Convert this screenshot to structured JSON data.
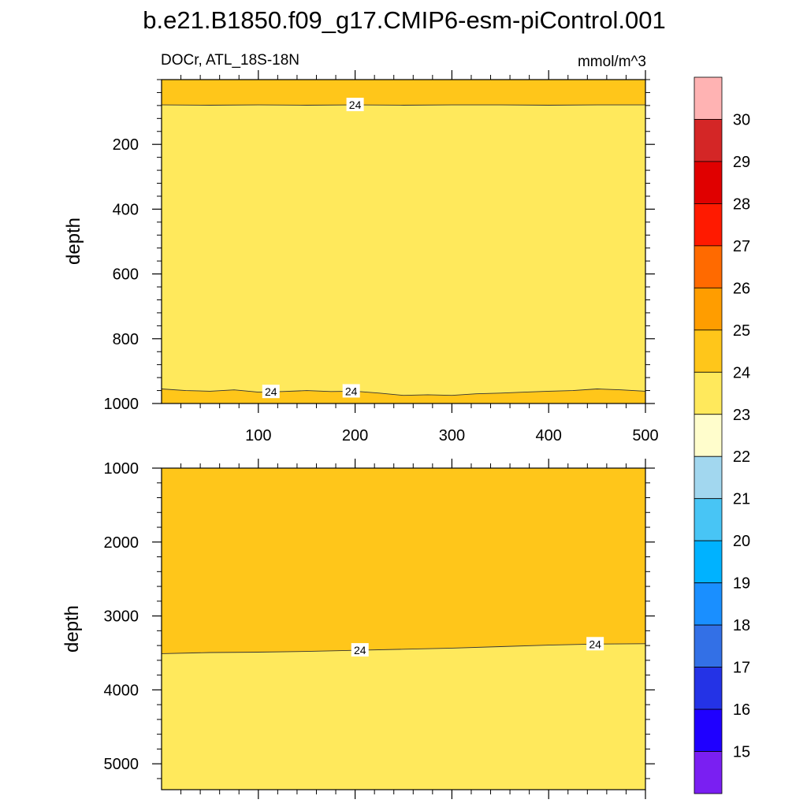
{
  "figure": {
    "title": "b.e21.B1850.f09_g17.CMIP6-esm-piControl.001",
    "subtitle_left": "DOCr, ATL_18S-18N",
    "subtitle_right": "mmol/m^3"
  },
  "colors": {
    "level_23_24": "#FFE95C",
    "level_24_25": "#FFC61A",
    "contour_line": "#333333",
    "axis": "#000000"
  },
  "chart_data": [
    {
      "type": "contour",
      "panel": "upper",
      "xlim": [
        0,
        500
      ],
      "ylim": [
        1000,
        0
      ],
      "ylabel": "depth",
      "xlabel": "",
      "x_ticks": [
        100,
        200,
        300,
        400,
        500
      ],
      "y_ticks": [
        200,
        400,
        600,
        800,
        1000
      ],
      "y_invert": true,
      "fill_regions": [
        {
          "level": "24-25",
          "from_depth": 0,
          "to_contour": "shallow_24"
        },
        {
          "level": "23-24",
          "from_contour": "shallow_24",
          "to_contour": "deep_24"
        },
        {
          "level": "24-25",
          "from_contour": "deep_24",
          "to_depth": 1000
        }
      ],
      "contours": [
        {
          "id": "shallow_24",
          "level": 24,
          "label": "24",
          "x": [
            0,
            50,
            100,
            150,
            200,
            250,
            300,
            350,
            400,
            450,
            500
          ],
          "depth": [
            78,
            79,
            78,
            79,
            78,
            79,
            78,
            78,
            79,
            78,
            78
          ],
          "label_positions_x": [
            200
          ]
        },
        {
          "id": "deep_24",
          "level": 24,
          "label": "24",
          "x": [
            0,
            25,
            50,
            75,
            100,
            125,
            150,
            175,
            200,
            225,
            250,
            275,
            300,
            325,
            350,
            375,
            400,
            425,
            450,
            475,
            500
          ],
          "depth": [
            955,
            960,
            962,
            958,
            965,
            963,
            960,
            963,
            962,
            968,
            975,
            973,
            975,
            970,
            968,
            965,
            962,
            960,
            955,
            958,
            962
          ],
          "label_positions_x": [
            113,
            196
          ]
        }
      ]
    },
    {
      "type": "contour",
      "panel": "lower",
      "xlim": [
        0,
        500
      ],
      "ylim": [
        5350,
        1000
      ],
      "ylabel": "depth",
      "xlabel": "",
      "x_ticks": [
        100,
        200,
        300,
        400,
        500
      ],
      "y_ticks": [
        1000,
        2000,
        3000,
        4000,
        5000
      ],
      "y_invert": true,
      "fill_regions": [
        {
          "level": "24-25",
          "from_depth": 1000,
          "to_contour": "mid_24"
        },
        {
          "level": "23-24",
          "from_contour": "mid_24",
          "to_depth": 5350
        }
      ],
      "contours": [
        {
          "id": "mid_24",
          "level": 24,
          "label": "24",
          "x": [
            0,
            50,
            100,
            150,
            200,
            250,
            300,
            350,
            400,
            450,
            500
          ],
          "depth": [
            3510,
            3495,
            3490,
            3480,
            3465,
            3450,
            3435,
            3415,
            3395,
            3380,
            3375
          ],
          "label_positions_x": [
            205,
            448
          ]
        }
      ]
    }
  ],
  "colorbar": {
    "levels": [
      "30",
      "29",
      "28",
      "27",
      "26",
      "25",
      "24",
      "23",
      "22",
      "21",
      "20",
      "19",
      "18",
      "17",
      "16",
      "15"
    ],
    "colors": [
      "#FFB3B3",
      "#D42626",
      "#E00000",
      "#FF1A00",
      "#FF6A00",
      "#FF9D00",
      "#FFC61A",
      "#FFE95C",
      "#FFFDCC",
      "#A2D7EF",
      "#48C5F5",
      "#00B2FF",
      "#1A8FFF",
      "#3370E6",
      "#2433E6",
      "#1F00FF",
      "#7A1FF2"
    ]
  }
}
